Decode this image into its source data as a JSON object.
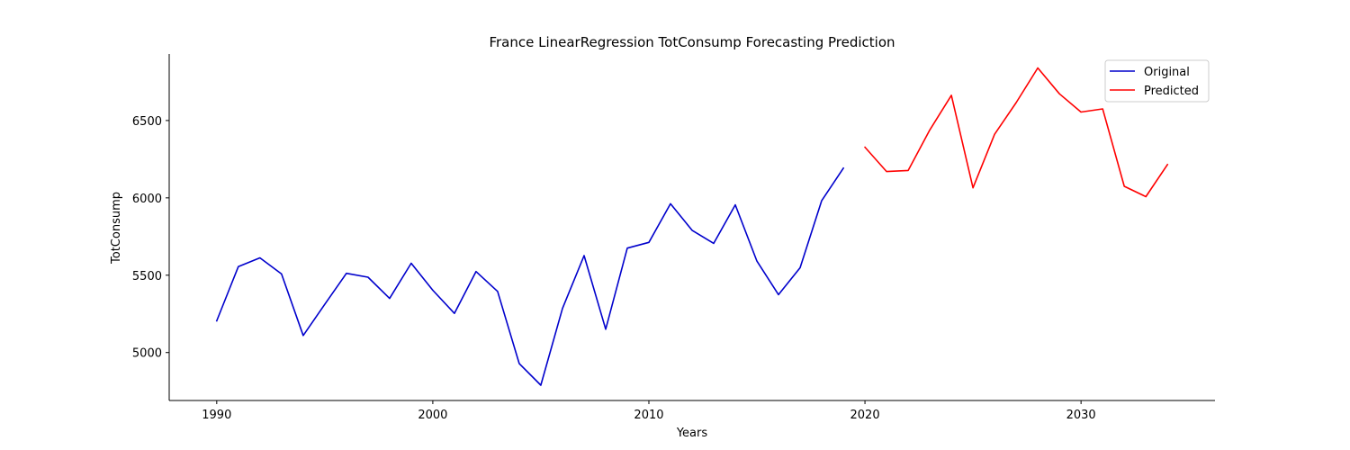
{
  "chart_data": {
    "type": "line",
    "title": "France LinearRegression TotConsump Forecasting Prediction",
    "xlabel": "Years",
    "ylabel": "TotConsump",
    "xlim": [
      1987.8,
      2036.2
    ],
    "ylim": [
      4690,
      6930
    ],
    "xticks": [
      1990,
      2000,
      2010,
      2020,
      2030
    ],
    "yticks": [
      5000,
      5500,
      6000,
      6500
    ],
    "grid": false,
    "legend_position": "top-right",
    "series": [
      {
        "name": "Original",
        "color": "#0000cc",
        "x": [
          1990,
          1991,
          1992,
          1993,
          1994,
          1995,
          1996,
          1997,
          1998,
          1999,
          2000,
          2001,
          2002,
          2003,
          2004,
          2005,
          2006,
          2007,
          2008,
          2009,
          2010,
          2011,
          2012,
          2013,
          2014,
          2015,
          2016,
          2017,
          2018,
          2019
        ],
        "y": [
          5205,
          5555,
          5612,
          5508,
          5110,
          5312,
          5512,
          5487,
          5350,
          5577,
          5403,
          5253,
          5524,
          5395,
          4929,
          4789,
          5285,
          5627,
          5151,
          5675,
          5712,
          5962,
          5790,
          5706,
          5955,
          5591,
          5374,
          5548,
          5982,
          6192
        ]
      },
      {
        "name": "Predicted",
        "color": "#ff0000",
        "x": [
          2020,
          2021,
          2022,
          2023,
          2024,
          2025,
          2026,
          2027,
          2028,
          2029,
          2030,
          2031,
          2032,
          2033,
          2034
        ],
        "y": [
          6327,
          6170,
          6177,
          6439,
          6663,
          6065,
          6411,
          6616,
          6840,
          6673,
          6555,
          6575,
          6075,
          6008,
          6215
        ]
      }
    ]
  }
}
